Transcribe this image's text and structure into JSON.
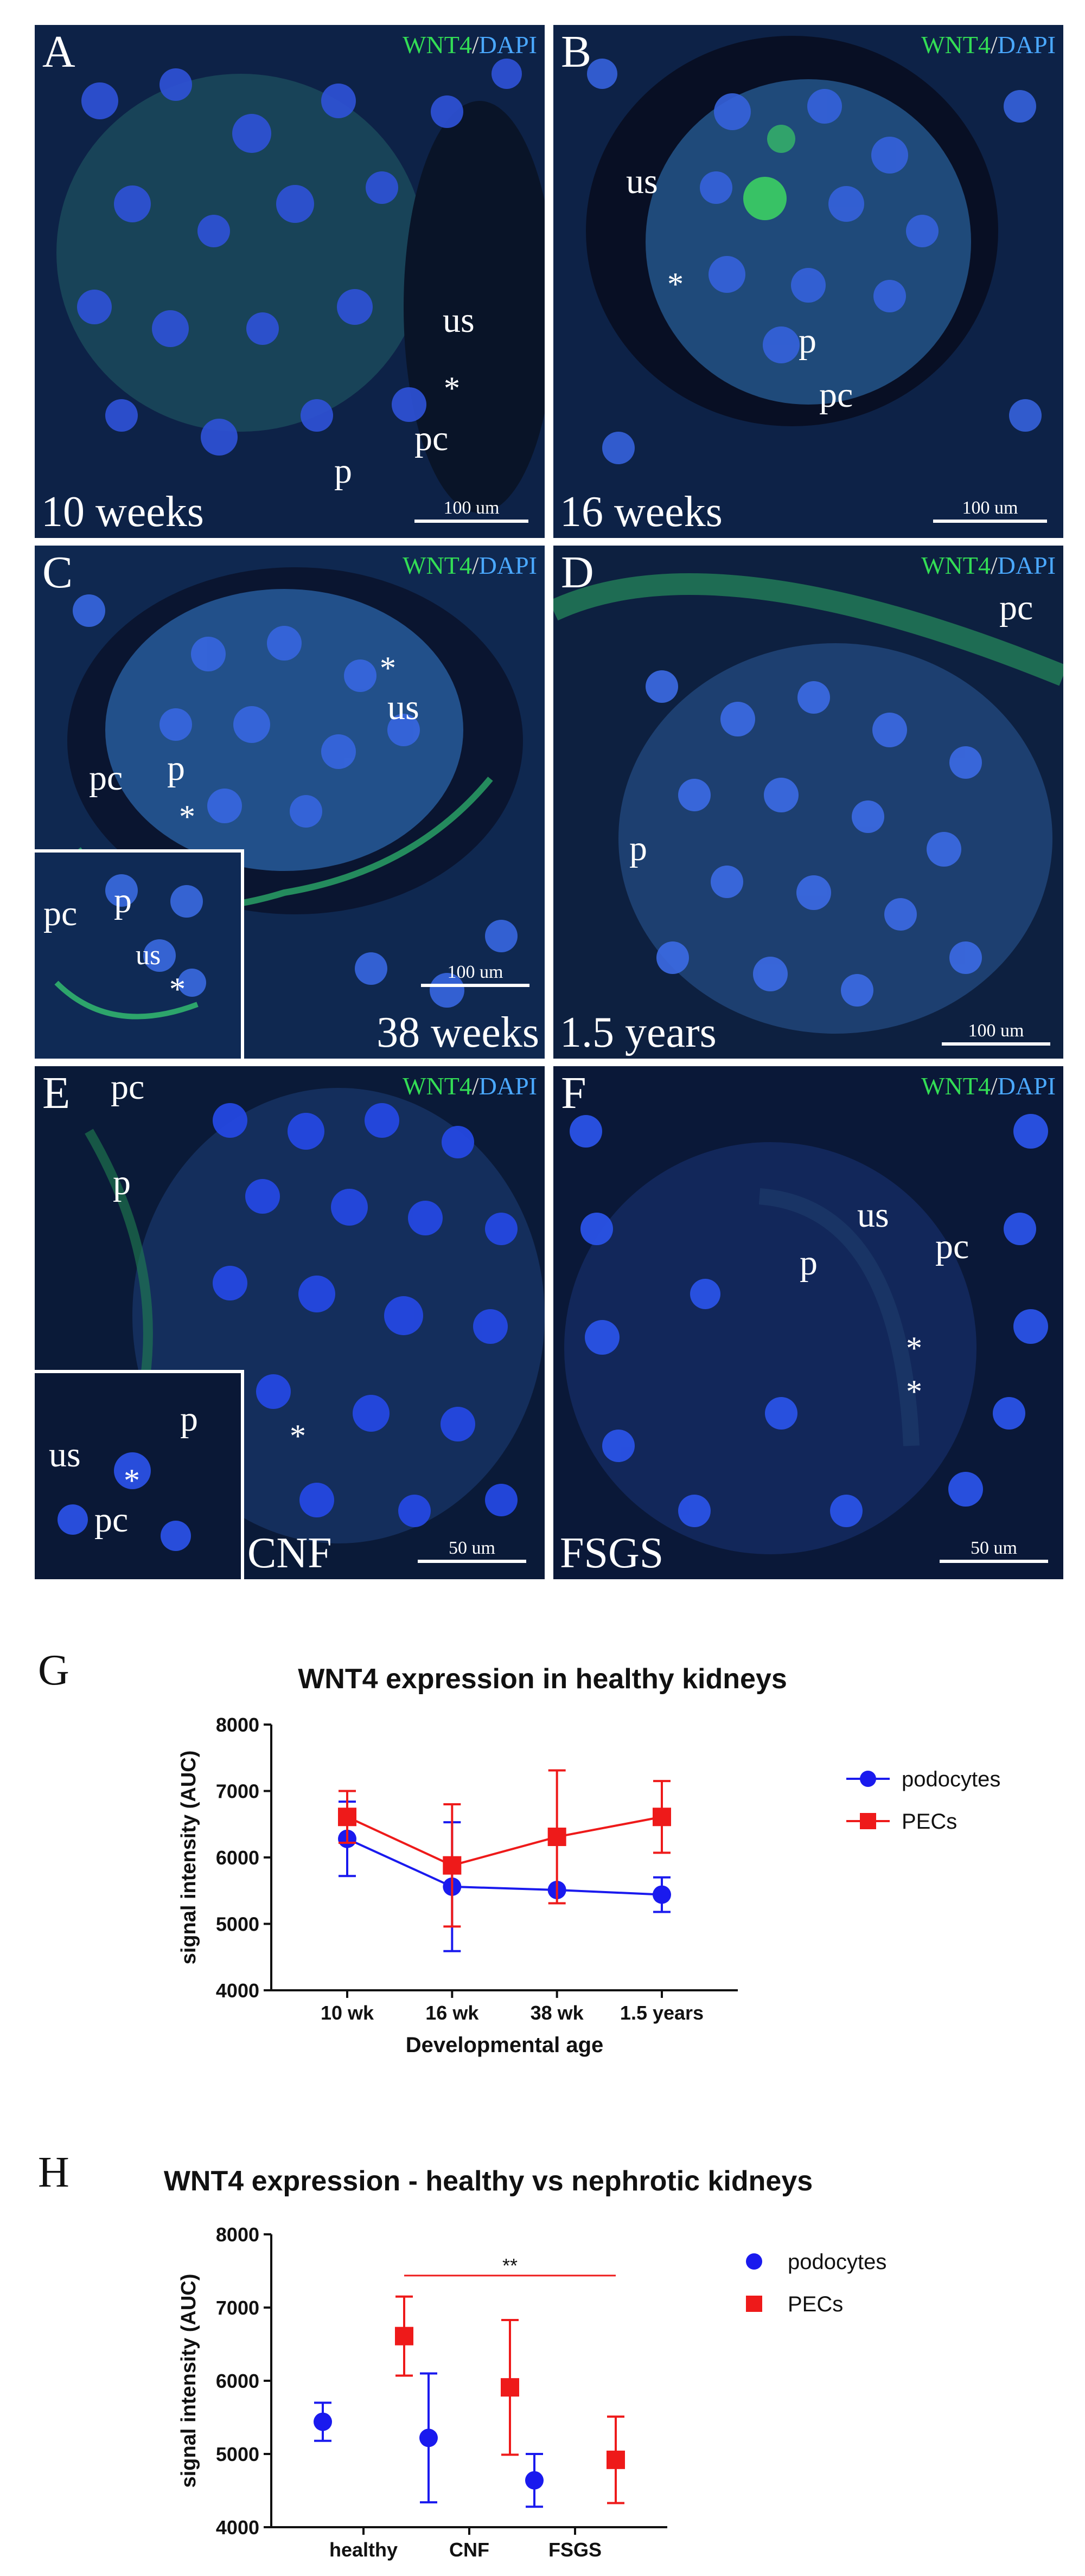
{
  "stain": {
    "wnt4": "WNT4",
    "slash": "/",
    "dapi": "DAPI"
  },
  "panels": [
    {
      "letter": "A",
      "age": "10 weeks",
      "scale": "100 um",
      "annotations": [
        "us",
        "pc",
        "p"
      ]
    },
    {
      "letter": "B",
      "age": "16 weeks",
      "scale": "100 um",
      "annotations": [
        "us",
        "p",
        "pc"
      ]
    },
    {
      "letter": "C",
      "age": "38 weeks",
      "scale": "100 um",
      "annotations": [
        "us",
        "pc",
        "p"
      ],
      "inset": [
        "pc",
        "p",
        "us"
      ]
    },
    {
      "letter": "D",
      "age": "1.5 years",
      "scale": "100 um",
      "annotations": [
        "pc",
        "p"
      ]
    },
    {
      "letter": "E",
      "age": "CNF",
      "scale": "50 um",
      "annotations": [
        "pc",
        "p"
      ],
      "inset": [
        "us",
        "p",
        "pc"
      ]
    },
    {
      "letter": "F",
      "age": "FSGS",
      "scale": "50 um",
      "annotations": [
        "us",
        "p",
        "pc"
      ]
    }
  ],
  "star": "*",
  "colors": {
    "podocytes": "#1a1aee",
    "pecs": "#ee1a1a",
    "wnt4": "#33dd55",
    "dapi": "#3b6cf0"
  },
  "chart_data": [
    {
      "letter": "G",
      "type": "line",
      "title": "WNT4 expression in healthy kidneys",
      "xlabel": "Developmental age",
      "ylabel": "signal intensity (AUC)",
      "categories": [
        "10 wk",
        "16 wk",
        "38 wk",
        "1.5 years"
      ],
      "ylim": [
        4000,
        8000
      ],
      "yticks": [
        4000,
        5000,
        6000,
        7000,
        8000
      ],
      "legend": "right",
      "series": [
        {
          "name": "podocytes",
          "color": "#1a1aee",
          "marker": "circle",
          "values": [
            6280,
            5560,
            5510,
            5440
          ],
          "errors": [
            560,
            970,
            0,
            260
          ]
        },
        {
          "name": "PECs",
          "color": "#ee1a1a",
          "marker": "square",
          "values": [
            6610,
            5880,
            6310,
            6610
          ],
          "errors": [
            390,
            920,
            1000,
            540
          ]
        }
      ]
    },
    {
      "letter": "H",
      "type": "scatter",
      "title": "WNT4 expression - healthy vs nephrotic kidneys",
      "xlabel": "",
      "ylabel": "signal intensity (AUC)",
      "categories": [
        "healthy",
        "CNF",
        "FSGS"
      ],
      "ylim": [
        4000,
        8000
      ],
      "yticks": [
        4000,
        5000,
        6000,
        7000,
        8000
      ],
      "legend": "right",
      "significance": "**",
      "series": [
        {
          "name": "podocytes",
          "color": "#1a1aee",
          "marker": "circle",
          "values": [
            5440,
            5220,
            4640
          ],
          "errors": [
            260,
            880,
            360
          ]
        },
        {
          "name": "PECs",
          "color": "#ee1a1a",
          "marker": "square",
          "values": [
            6610,
            5910,
            4920
          ],
          "errors": [
            540,
            920,
            590
          ]
        }
      ]
    }
  ]
}
